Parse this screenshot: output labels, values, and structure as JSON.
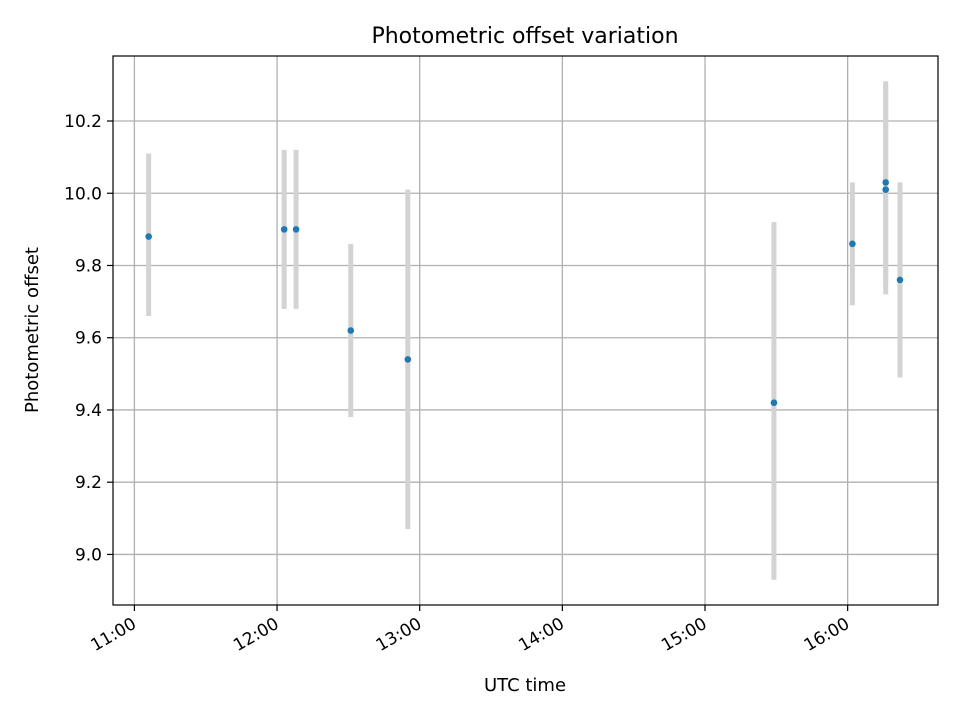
{
  "chart_data": {
    "type": "scatter",
    "title": "Photometric offset variation",
    "xlabel": "UTC time",
    "ylabel": "Photometric offset",
    "x_ticks": [
      "11:00",
      "12:00",
      "13:00",
      "14:00",
      "15:00",
      "16:00"
    ],
    "y_ticks": [
      "9.0",
      "9.2",
      "9.4",
      "9.6",
      "9.8",
      "10.0",
      "10.2"
    ],
    "xlim": [
      "10:51",
      "16:38"
    ],
    "ylim": [
      8.86,
      10.38
    ],
    "grid": true,
    "colors": {
      "marker": "#1f77b4",
      "errorbar": "#d3d3d3",
      "grid": "#b0b0b0"
    },
    "points": [
      {
        "x": "11:06",
        "y": 9.88,
        "ylow": 9.66,
        "yhigh": 10.11
      },
      {
        "x": "12:03",
        "y": 9.9,
        "ylow": 9.68,
        "yhigh": 10.12
      },
      {
        "x": "12:08",
        "y": 9.9,
        "ylow": 9.68,
        "yhigh": 10.12
      },
      {
        "x": "12:31",
        "y": 9.62,
        "ylow": 9.38,
        "yhigh": 9.86
      },
      {
        "x": "12:55",
        "y": 9.54,
        "ylow": 9.07,
        "yhigh": 10.01
      },
      {
        "x": "15:29",
        "y": 9.42,
        "ylow": 8.93,
        "yhigh": 9.92
      },
      {
        "x": "16:02",
        "y": 9.86,
        "ylow": 9.69,
        "yhigh": 10.03
      },
      {
        "x": "16:16",
        "y": 10.03,
        "ylow": 9.75,
        "yhigh": 10.31
      },
      {
        "x": "16:16",
        "y": 10.01,
        "ylow": 9.72,
        "yhigh": 10.3
      },
      {
        "x": "16:22",
        "y": 9.76,
        "ylow": 9.49,
        "yhigh": 10.03
      }
    ]
  }
}
